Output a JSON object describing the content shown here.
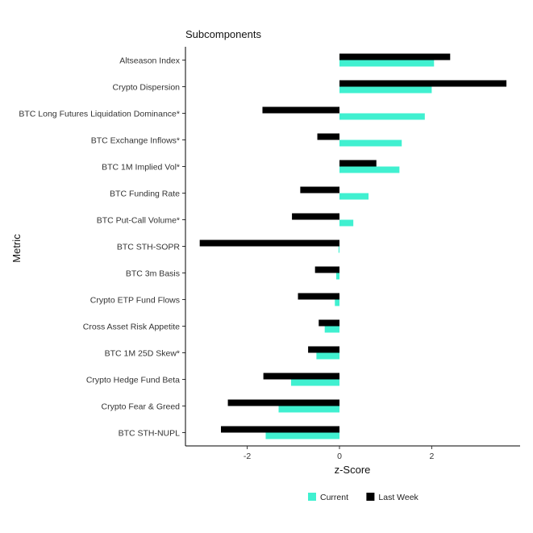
{
  "chart_data": {
    "type": "bar",
    "orientation": "horizontal",
    "title": "Subcomponents",
    "xlabel": "z-Score",
    "ylabel": "Metric",
    "xlim": [
      -3.35,
      3.85
    ],
    "xticks": [
      -2,
      0,
      2
    ],
    "grid": false,
    "legend_position": "bottom",
    "categories": [
      "Altseason Index",
      "Crypto Dispersion",
      "BTC Long Futures Liquidation Dominance*",
      "BTC Exchange Inflows*",
      "BTC 1M Implied Vol*",
      "BTC Funding Rate",
      "BTC Put-Call Volume*",
      "BTC STH-SOPR",
      "BTC 3m Basis",
      "Crypto ETP Fund Flows",
      "Cross Asset Risk Appetite",
      "BTC 1M 25D Skew*",
      "Crypto Hedge Fund Beta",
      "Crypto Fear & Greed",
      "BTC STH-NUPL"
    ],
    "series": [
      {
        "name": "Current",
        "color": "#40f0d0",
        "values": [
          2.05,
          2.0,
          1.85,
          1.35,
          1.3,
          0.63,
          0.3,
          -0.02,
          -0.07,
          -0.1,
          -0.32,
          -0.5,
          -1.05,
          -1.32,
          -1.6
        ]
      },
      {
        "name": "Last Week",
        "color": "#000000",
        "values": [
          2.4,
          3.62,
          -1.67,
          -0.48,
          0.8,
          -0.85,
          -1.03,
          -3.03,
          -0.53,
          -0.9,
          -0.45,
          -0.68,
          -1.65,
          -2.42,
          -2.57
        ]
      }
    ]
  }
}
